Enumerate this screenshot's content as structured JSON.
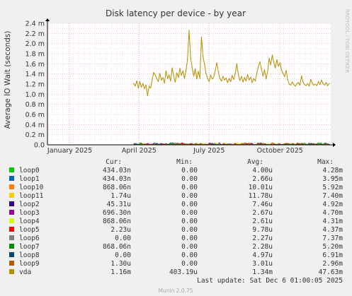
{
  "chart_data": {
    "type": "line",
    "title": "Disk latency per device - by year",
    "ylabel": "Average IO Wait (seconds)",
    "side_label": "RRDTOOL / TOBI OETIKER",
    "footer": "Munin 2.0.75",
    "last_update": "Last update:  Sat Dec  6 01:00:05 2025",
    "ylim": [
      0,
      0.0024
    ],
    "y_ticks": [
      {
        "value": 0.0,
        "label": "0.0"
      },
      {
        "value": 0.0002,
        "label": "0.2 m"
      },
      {
        "value": 0.0004,
        "label": "0.4 m"
      },
      {
        "value": 0.0006,
        "label": "0.6 m"
      },
      {
        "value": 0.0008,
        "label": "0.8 m"
      },
      {
        "value": 0.001,
        "label": "1.0 m"
      },
      {
        "value": 0.0012,
        "label": "1.2 m"
      },
      {
        "value": 0.0014,
        "label": "1.4 m"
      },
      {
        "value": 0.0016,
        "label": "1.6 m"
      },
      {
        "value": 0.0018,
        "label": "1.8 m"
      },
      {
        "value": 0.002,
        "label": "2.0 m"
      },
      {
        "value": 0.0022,
        "label": "2.2 m"
      },
      {
        "value": 0.0024,
        "label": "2.4 m"
      }
    ],
    "x_range": [
      "2024-12-03",
      "2025-12-06"
    ],
    "x_ticks": [
      {
        "date": "2025-01-01",
        "label": "January 2025"
      },
      {
        "date": "2025-04-01",
        "label": "April 2025"
      },
      {
        "date": "2025-07-01",
        "label": "July 2025"
      },
      {
        "date": "2025-10-01",
        "label": "October 2025"
      }
    ],
    "grid": true,
    "legend_position": "bottom",
    "legend_headers": {
      "cur": "Cur:",
      "min": "Min:",
      "avg": "Avg:",
      "max": "Max:"
    },
    "series": [
      {
        "name": "loop0",
        "color": "#00cc00",
        "cur": "434.03n",
        "min": "0.00",
        "avg": "4.00u",
        "max": "4.28m"
      },
      {
        "name": "loop1",
        "color": "#0066b3",
        "cur": "434.03n",
        "min": "0.00",
        "avg": "2.66u",
        "max": "3.95m"
      },
      {
        "name": "loop10",
        "color": "#ff8000",
        "cur": "868.06n",
        "min": "0.00",
        "avg": "10.01u",
        "max": "5.92m"
      },
      {
        "name": "loop11",
        "color": "#ffcc00",
        "cur": "1.74u",
        "min": "0.00",
        "avg": "11.78u",
        "max": "7.40m"
      },
      {
        "name": "loop2",
        "color": "#330099",
        "cur": "45.31u",
        "min": "0.00",
        "avg": "7.46u",
        "max": "4.92m"
      },
      {
        "name": "loop3",
        "color": "#990099",
        "cur": "696.30n",
        "min": "0.00",
        "avg": "2.67u",
        "max": "4.70m"
      },
      {
        "name": "loop4",
        "color": "#ccff00",
        "cur": "868.06n",
        "min": "0.00",
        "avg": "2.61u",
        "max": "4.31m"
      },
      {
        "name": "loop5",
        "color": "#ff0000",
        "cur": "2.23u",
        "min": "0.00",
        "avg": "9.78u",
        "max": "4.37m"
      },
      {
        "name": "loop6",
        "color": "#808080",
        "cur": "0.00",
        "min": "0.00",
        "avg": "2.27u",
        "max": "7.37m"
      },
      {
        "name": "loop7",
        "color": "#008f00",
        "cur": "868.06n",
        "min": "0.00",
        "avg": "2.28u",
        "max": "5.20m"
      },
      {
        "name": "loop8",
        "color": "#00487d",
        "cur": "0.00",
        "min": "0.00",
        "avg": "4.97u",
        "max": "6.91m"
      },
      {
        "name": "loop9",
        "color": "#b35a00",
        "cur": "1.30u",
        "min": "0.00",
        "avg": "3.01u",
        "max": "2.96m"
      },
      {
        "name": "vda",
        "color": "#b38f00",
        "cur": "1.16m",
        "min": "403.19u",
        "avg": "1.34m",
        "max": "47.63m"
      }
    ],
    "vda_points": [
      [
        "2025-03-25",
        0.00121
      ],
      [
        "2025-03-27",
        0.00116
      ],
      [
        "2025-03-29",
        0.00126
      ],
      [
        "2025-03-31",
        0.00112
      ],
      [
        "2025-04-02",
        0.00125
      ],
      [
        "2025-04-04",
        0.00114
      ],
      [
        "2025-04-06",
        0.00121
      ],
      [
        "2025-04-08",
        0.00111
      ],
      [
        "2025-04-10",
        0.00118
      ],
      [
        "2025-04-12",
        0.00097
      ],
      [
        "2025-04-14",
        0.00116
      ],
      [
        "2025-04-16",
        0.00112
      ],
      [
        "2025-04-18",
        0.00128
      ],
      [
        "2025-04-20",
        0.00143
      ],
      [
        "2025-04-22",
        0.00138
      ],
      [
        "2025-04-24",
        0.00131
      ],
      [
        "2025-04-26",
        0.00125
      ],
      [
        "2025-04-28",
        0.00141
      ],
      [
        "2025-04-30",
        0.00128
      ],
      [
        "2025-05-02",
        0.00133
      ],
      [
        "2025-05-04",
        0.00122
      ],
      [
        "2025-05-06",
        0.00146
      ],
      [
        "2025-05-08",
        0.00131
      ],
      [
        "2025-05-10",
        0.00138
      ],
      [
        "2025-05-12",
        0.00126
      ],
      [
        "2025-05-14",
        0.00152
      ],
      [
        "2025-05-16",
        0.00136
      ],
      [
        "2025-05-18",
        0.00124
      ],
      [
        "2025-05-20",
        0.00142
      ],
      [
        "2025-05-22",
        0.00133
      ],
      [
        "2025-05-24",
        0.00151
      ],
      [
        "2025-05-26",
        0.00137
      ],
      [
        "2025-05-28",
        0.00146
      ],
      [
        "2025-05-30",
        0.00131
      ],
      [
        "2025-06-01",
        0.00148
      ],
      [
        "2025-06-03",
        0.00169
      ],
      [
        "2025-06-05",
        0.00226
      ],
      [
        "2025-06-07",
        0.00171
      ],
      [
        "2025-06-09",
        0.00153
      ],
      [
        "2025-06-11",
        0.00136
      ],
      [
        "2025-06-13",
        0.0015
      ],
      [
        "2025-06-15",
        0.0013
      ],
      [
        "2025-06-17",
        0.00145
      ],
      [
        "2025-06-19",
        0.00131
      ],
      [
        "2025-06-21",
        0.00213
      ],
      [
        "2025-06-23",
        0.00175
      ],
      [
        "2025-06-25",
        0.00159
      ],
      [
        "2025-06-27",
        0.00141
      ],
      [
        "2025-06-29",
        0.00131
      ],
      [
        "2025-07-01",
        0.00125
      ],
      [
        "2025-07-03",
        0.00138
      ],
      [
        "2025-07-05",
        0.0013
      ],
      [
        "2025-07-07",
        0.00134
      ],
      [
        "2025-07-09",
        0.00147
      ],
      [
        "2025-07-11",
        0.00162
      ],
      [
        "2025-07-13",
        0.00144
      ],
      [
        "2025-07-15",
        0.00131
      ],
      [
        "2025-07-17",
        0.00126
      ],
      [
        "2025-07-19",
        0.00135
      ],
      [
        "2025-07-21",
        0.00128
      ],
      [
        "2025-07-23",
        0.00132
      ],
      [
        "2025-07-25",
        0.00123
      ],
      [
        "2025-07-27",
        0.00131
      ],
      [
        "2025-07-29",
        0.00125
      ],
      [
        "2025-07-31",
        0.00137
      ],
      [
        "2025-08-02",
        0.00129
      ],
      [
        "2025-08-04",
        0.00141
      ],
      [
        "2025-08-06",
        0.0016
      ],
      [
        "2025-08-08",
        0.00138
      ],
      [
        "2025-08-10",
        0.00127
      ],
      [
        "2025-08-12",
        0.00135
      ],
      [
        "2025-08-14",
        0.00124
      ],
      [
        "2025-08-16",
        0.00133
      ],
      [
        "2025-08-18",
        0.00126
      ],
      [
        "2025-08-20",
        0.00139
      ],
      [
        "2025-08-22",
        0.00128
      ],
      [
        "2025-08-24",
        0.00134
      ],
      [
        "2025-08-26",
        0.00123
      ],
      [
        "2025-08-28",
        0.00131
      ],
      [
        "2025-08-30",
        0.00126
      ],
      [
        "2025-09-01",
        0.00142
      ],
      [
        "2025-09-03",
        0.00155
      ],
      [
        "2025-09-05",
        0.00164
      ],
      [
        "2025-09-07",
        0.0015
      ],
      [
        "2025-09-09",
        0.00136
      ],
      [
        "2025-09-11",
        0.00148
      ],
      [
        "2025-09-13",
        0.0013
      ],
      [
        "2025-09-15",
        0.00145
      ],
      [
        "2025-09-17",
        0.00171
      ],
      [
        "2025-09-19",
        0.00158
      ],
      [
        "2025-09-21",
        0.00177
      ],
      [
        "2025-09-23",
        0.00163
      ],
      [
        "2025-09-25",
        0.00152
      ],
      [
        "2025-09-27",
        0.00168
      ],
      [
        "2025-09-29",
        0.00155
      ],
      [
        "2025-10-01",
        0.00162
      ],
      [
        "2025-10-03",
        0.00148
      ],
      [
        "2025-10-05",
        0.00141
      ],
      [
        "2025-10-07",
        0.00135
      ],
      [
        "2025-10-09",
        0.00147
      ],
      [
        "2025-10-11",
        0.00129
      ],
      [
        "2025-10-13",
        0.0012
      ],
      [
        "2025-10-15",
        0.00118
      ],
      [
        "2025-10-17",
        0.00124
      ],
      [
        "2025-10-19",
        0.00119
      ],
      [
        "2025-10-21",
        0.00116
      ],
      [
        "2025-10-23",
        0.00121
      ],
      [
        "2025-10-25",
        0.00123
      ],
      [
        "2025-10-27",
        0.00118
      ],
      [
        "2025-10-29",
        0.00136
      ],
      [
        "2025-10-31",
        0.00124
      ],
      [
        "2025-11-02",
        0.00119
      ],
      [
        "2025-11-04",
        0.00117
      ],
      [
        "2025-11-06",
        0.00121
      ],
      [
        "2025-11-08",
        0.00116
      ],
      [
        "2025-11-10",
        0.00129
      ],
      [
        "2025-11-12",
        0.00122
      ],
      [
        "2025-11-14",
        0.00118
      ],
      [
        "2025-11-16",
        0.0012
      ],
      [
        "2025-11-18",
        0.00117
      ],
      [
        "2025-11-20",
        0.00125
      ],
      [
        "2025-11-22",
        0.00119
      ],
      [
        "2025-11-24",
        0.00128
      ],
      [
        "2025-11-26",
        0.00121
      ],
      [
        "2025-11-28",
        0.00118
      ],
      [
        "2025-11-30",
        0.00123
      ],
      [
        "2025-12-02",
        0.00117
      ],
      [
        "2025-12-04",
        0.00121
      ]
    ]
  }
}
